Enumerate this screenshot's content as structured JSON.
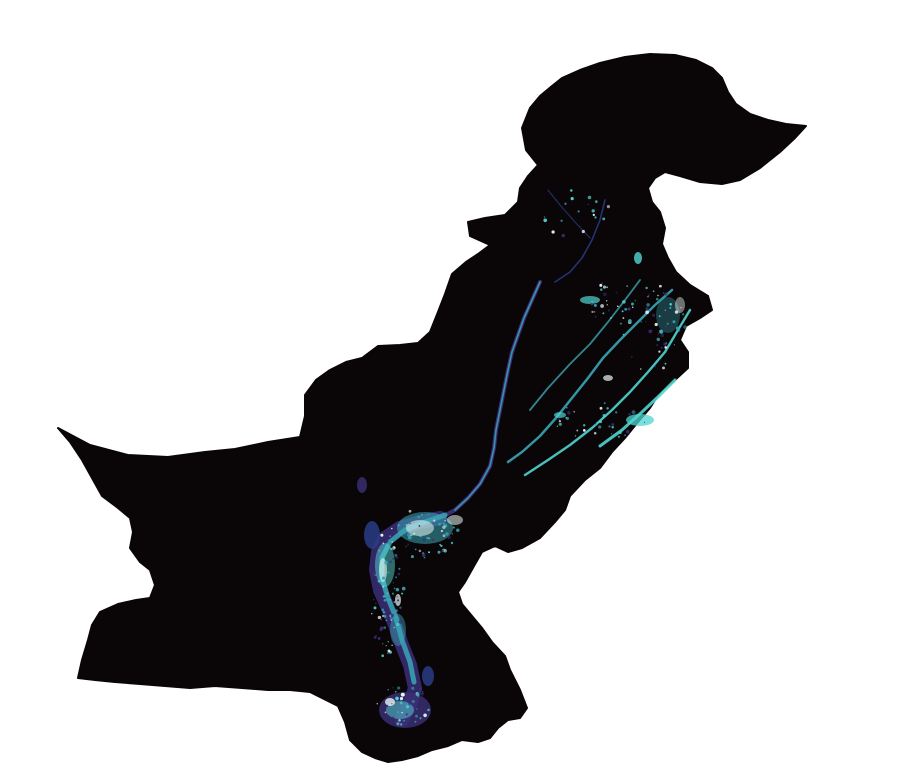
{
  "map": {
    "background_color": "#ffffff",
    "land_color": "#0a0507",
    "overlay_colors": {
      "cyan": "#4fd6d2",
      "teal": "#3aa6b5",
      "purple": "#3b2f78",
      "indigo": "#2b3f8c",
      "white": "#eaf6f4"
    }
  }
}
